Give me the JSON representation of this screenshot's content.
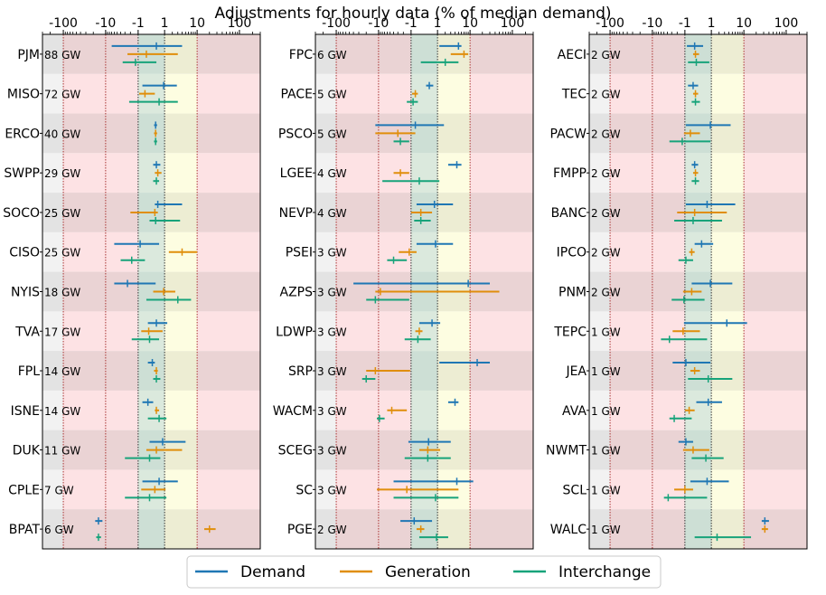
{
  "chart_data": {
    "type": "errorbar",
    "title": "Adjustments for hourly data (% of median demand)",
    "xscale": "symlog",
    "xlim": [
      -300,
      300
    ],
    "ticks": [
      -100,
      -10,
      -1,
      1,
      10,
      100
    ],
    "tick_labels": [
      "-100",
      "-10",
      "-1",
      "1",
      "10",
      "100"
    ],
    "series": [
      {
        "name": "Demand",
        "color": "#1f77b4"
      },
      {
        "name": "Generation",
        "color": "#e08e0b"
      },
      {
        "name": "Interchange",
        "color": "#17a37a"
      }
    ],
    "legend": [
      "Demand",
      "Generation",
      "Interchange"
    ],
    "legend_position": "bottom-center",
    "panels": [
      {
        "regions": [
          {
            "name": "PJM",
            "size": "88 GW",
            "demand": [
              -7,
              0.3,
              4
            ],
            "generation": [
              -2.5,
              -0.3,
              3
            ],
            "interchange": [
              -3.5,
              -1.3,
              0.3
            ]
          },
          {
            "name": "MISO",
            "size": "72 GW",
            "demand": [
              -0.6,
              0.9,
              2.8
            ],
            "generation": [
              -0.9,
              -0.4,
              0.2
            ],
            "interchange": [
              -2.2,
              0.5,
              3
            ]
          },
          {
            "name": "ERCO",
            "size": "40 GW",
            "demand": [
              0.15,
              0.25,
              0.35
            ],
            "generation": [
              0.15,
              0.25,
              0.35
            ],
            "interchange": [
              0.15,
              0.25,
              0.35
            ]
          },
          {
            "name": "SWPP",
            "size": "29 GW",
            "demand": [
              0.1,
              0.3,
              0.6
            ],
            "generation": [
              0.2,
              0.4,
              0.7
            ],
            "interchange": [
              0.1,
              0.3,
              0.5
            ]
          },
          {
            "name": "SOCO",
            "size": "25 GW",
            "demand": [
              0.2,
              0.4,
              4
            ],
            "generation": [
              -2,
              0.2,
              0.4
            ],
            "interchange": [
              -0.1,
              0.25,
              3.5
            ]
          },
          {
            "name": "CISO",
            "size": "25 GW",
            "demand": [
              -6,
              -0.8,
              0.5
            ],
            "generation": [
              1.5,
              4,
              10
            ],
            "interchange": [
              -4,
              -1.8,
              -0.4
            ]
          },
          {
            "name": "NYIS",
            "size": "18 GW",
            "demand": [
              -6,
              -2.5,
              0.25
            ],
            "generation": [
              0.1,
              0.9,
              2.5
            ],
            "interchange": [
              -0.3,
              3,
              7
            ]
          },
          {
            "name": "TVA",
            "size": "17 GW",
            "demand": [
              -0.2,
              0.3,
              1.3
            ],
            "generation": [
              -0.7,
              -0.15,
              0.8
            ],
            "interchange": [
              -1.8,
              -0.1,
              0.5
            ]
          },
          {
            "name": "FPL",
            "size": "14 GW",
            "demand": [
              -0.2,
              0.05,
              0.2
            ],
            "generation": [
              0.15,
              0.3,
              0.4
            ],
            "interchange": [
              0.1,
              0.3,
              0.6
            ]
          },
          {
            "name": "ISNE",
            "size": "14 GW",
            "demand": [
              -0.6,
              -0.2,
              0.1
            ],
            "generation": [
              0.2,
              0.3,
              0.5
            ],
            "interchange": [
              -0.2,
              0.5,
              1.2
            ]
          },
          {
            "name": "DUK",
            "size": "11 GW",
            "demand": [
              -0.1,
              0.8,
              5
            ],
            "generation": [
              -0.3,
              0.3,
              4
            ],
            "interchange": [
              -3,
              -0.1,
              0.6
            ]
          },
          {
            "name": "CPLE",
            "size": "7 GW",
            "demand": [
              -0.6,
              0.5,
              3
            ],
            "generation": [
              -0.7,
              0.2,
              1.1
            ],
            "interchange": [
              -3,
              -0.1,
              1.2
            ]
          },
          {
            "name": "BPAT",
            "size": "6 GW",
            "demand": [
              -18,
              -15,
              -12
            ],
            "generation": [
              15,
              20,
              28
            ],
            "interchange": [
              -17,
              -15,
              -13
            ]
          }
        ]
      },
      {
        "regions": [
          {
            "name": "FPC",
            "size": "6 GW",
            "demand": [
              1.2,
              5,
              6
            ],
            "generation": [
              3,
              7,
              9
            ],
            "interchange": [
              -0.2,
              2,
              5
            ]
          },
          {
            "name": "PACE",
            "size": "5 GW",
            "demand": [
              0.1,
              0.3,
              0.6
            ],
            "generation": [
              -0.9,
              -0.6,
              -0.4
            ],
            "interchange": [
              -1.5,
              -0.8,
              -0.4
            ]
          },
          {
            "name": "PSCO",
            "size": "5 GW",
            "demand": [
              -12,
              -0.6,
              1.8
            ],
            "generation": [
              -12,
              -3,
              -0.6
            ],
            "interchange": [
              -4,
              -2.5,
              -1.2
            ]
          },
          {
            "name": "LGEE",
            "size": "4 GW",
            "demand": [
              2.5,
              4.5,
              6
            ],
            "generation": [
              -4,
              -2.5,
              -1.2
            ],
            "interchange": [
              -8,
              -0.3,
              1.2
            ]
          },
          {
            "name": "NEVP",
            "size": "4 GW",
            "demand": [
              -0.5,
              0.7,
              3.5
            ],
            "generation": [
              -1,
              -0.2,
              0.5
            ],
            "interchange": [
              -0.7,
              -0.2,
              0.4
            ]
          },
          {
            "name": "PSEI",
            "size": "3 GW",
            "demand": [
              -0.5,
              0.8,
              3.5
            ],
            "generation": [
              -2.8,
              -1.2,
              -0.5
            ],
            "interchange": [
              -6,
              -4,
              -1.5
            ]
          },
          {
            "name": "AZPS",
            "size": "3 GW",
            "demand": [
              -40,
              9,
              30
            ],
            "generation": [
              -12,
              -9,
              50
            ],
            "interchange": [
              -20,
              -12,
              -1.2
            ]
          },
          {
            "name": "LDWP",
            "size": "3 GW",
            "demand": [
              -0.3,
              0.5,
              1.3
            ],
            "generation": [
              -0.6,
              -0.3,
              -0.1
            ],
            "interchange": [
              -1.8,
              -0.4,
              0.4
            ]
          },
          {
            "name": "SRP",
            "size": "3 GW",
            "demand": [
              1.2,
              15,
              30
            ],
            "generation": [
              -20,
              -12,
              -1.1
            ],
            "interchange": [
              -25,
              -20,
              -12
            ]
          },
          {
            "name": "WACM",
            "size": "3 GW",
            "demand": [
              2.5,
              4,
              5
            ],
            "generation": [
              -6,
              -4.5,
              -1.5
            ],
            "interchange": [
              -11,
              -9.5,
              -7
            ]
          },
          {
            "name": "SCEG",
            "size": "3 GW",
            "demand": [
              -1.3,
              0.25,
              3
            ],
            "generation": [
              -0.3,
              0.2,
              1.3
            ],
            "interchange": [
              -1.8,
              0.2,
              3
            ]
          },
          {
            "name": "SC",
            "size": "3 GW",
            "demand": [
              -4,
              4.5,
              12
            ],
            "generation": [
              -11,
              -1.5,
              5
            ],
            "interchange": [
              -4,
              0.8,
              5
            ]
          },
          {
            "name": "PGE",
            "size": "2 GW",
            "demand": [
              -2.5,
              -0.7,
              0.5
            ],
            "generation": [
              -0.5,
              -0.2,
              0
            ],
            "interchange": [
              -0.3,
              0.9,
              2.5
            ]
          }
        ]
      },
      {
        "regions": [
          {
            "name": "AECI",
            "size": "2 GW",
            "demand": [
              -0.8,
              -0.2,
              0.3
            ],
            "generation": [
              -0.3,
              -0.15,
              0.05
            ],
            "interchange": [
              -0.7,
              -0.1,
              0.8
            ]
          },
          {
            "name": "TEC",
            "size": "2 GW",
            "demand": [
              -0.7,
              -0.3,
              0
            ],
            "generation": [
              -0.3,
              -0.15,
              0
            ],
            "interchange": [
              -0.4,
              -0.15,
              0.1
            ]
          },
          {
            "name": "PACW",
            "size": "2 GW",
            "demand": [
              -0.9,
              0.9,
              4.5
            ],
            "generation": [
              -1.1,
              -0.5,
              0.1
            ],
            "interchange": [
              -3.5,
              -1.3,
              0.9
            ]
          },
          {
            "name": "FMPP",
            "size": "2 GW",
            "demand": [
              -0.4,
              -0.2,
              0
            ],
            "generation": [
              -0.3,
              -0.15,
              0
            ],
            "interchange": [
              -0.4,
              -0.15,
              0.05
            ]
          },
          {
            "name": "BANC",
            "size": "2 GW",
            "demand": [
              -0.9,
              0.6,
              6
            ],
            "generation": [
              -2,
              -0.2,
              3.5
            ],
            "interchange": [
              -2.5,
              -0.3,
              2.5
            ]
          },
          {
            "name": "IPCO",
            "size": "2 GW",
            "demand": [
              -0.2,
              0.2,
              1.2
            ],
            "generation": [
              -0.6,
              -0.4,
              -0.2
            ],
            "interchange": [
              -1.8,
              -0.9,
              -0.3
            ]
          },
          {
            "name": "PNM",
            "size": "2 GW",
            "demand": [
              -0.4,
              0.9,
              5
            ],
            "generation": [
              -1.2,
              -0.4,
              0.2
            ],
            "interchange": [
              -3,
              -1.1,
              0.4
            ]
          },
          {
            "name": "TEPC",
            "size": "1 GW",
            "demand": [
              -1.1,
              3.5,
              12
            ],
            "generation": [
              -2.8,
              -1.2,
              0.1
            ],
            "interchange": [
              -6,
              -3.5,
              0.6
            ]
          },
          {
            "name": "JEA",
            "size": "1 GW",
            "demand": [
              -2.8,
              -0.9,
              0.9
            ],
            "generation": [
              -0.5,
              -0.2,
              0.1
            ],
            "interchange": [
              -0.7,
              0.7,
              5
            ]
          },
          {
            "name": "AVA",
            "size": "1 GW",
            "demand": [
              -0.1,
              0.7,
              2.5
            ],
            "generation": [
              -1,
              -0.6,
              -0.2
            ],
            "interchange": [
              -3.5,
              -2.5,
              -0.4
            ]
          },
          {
            "name": "NWMT",
            "size": "1 GW",
            "demand": [
              -1.8,
              -0.9,
              -0.3
            ],
            "generation": [
              -1.2,
              -0.3,
              0.8
            ],
            "interchange": [
              -0.4,
              0.5,
              2.8
            ]
          },
          {
            "name": "SCL",
            "size": "1 GW",
            "demand": [
              -0.5,
              0.6,
              4
            ],
            "generation": [
              -2.5,
              -1,
              -0.3
            ],
            "interchange": [
              -5,
              -3.8,
              0.6
            ]
          },
          {
            "name": "WALC",
            "size": "1 GW",
            "demand": [
              27,
              32,
              40
            ],
            "generation": [
              27,
              32,
              38
            ],
            "interchange": [
              -0.2,
              1.7,
              15
            ]
          }
        ]
      }
    ]
  }
}
